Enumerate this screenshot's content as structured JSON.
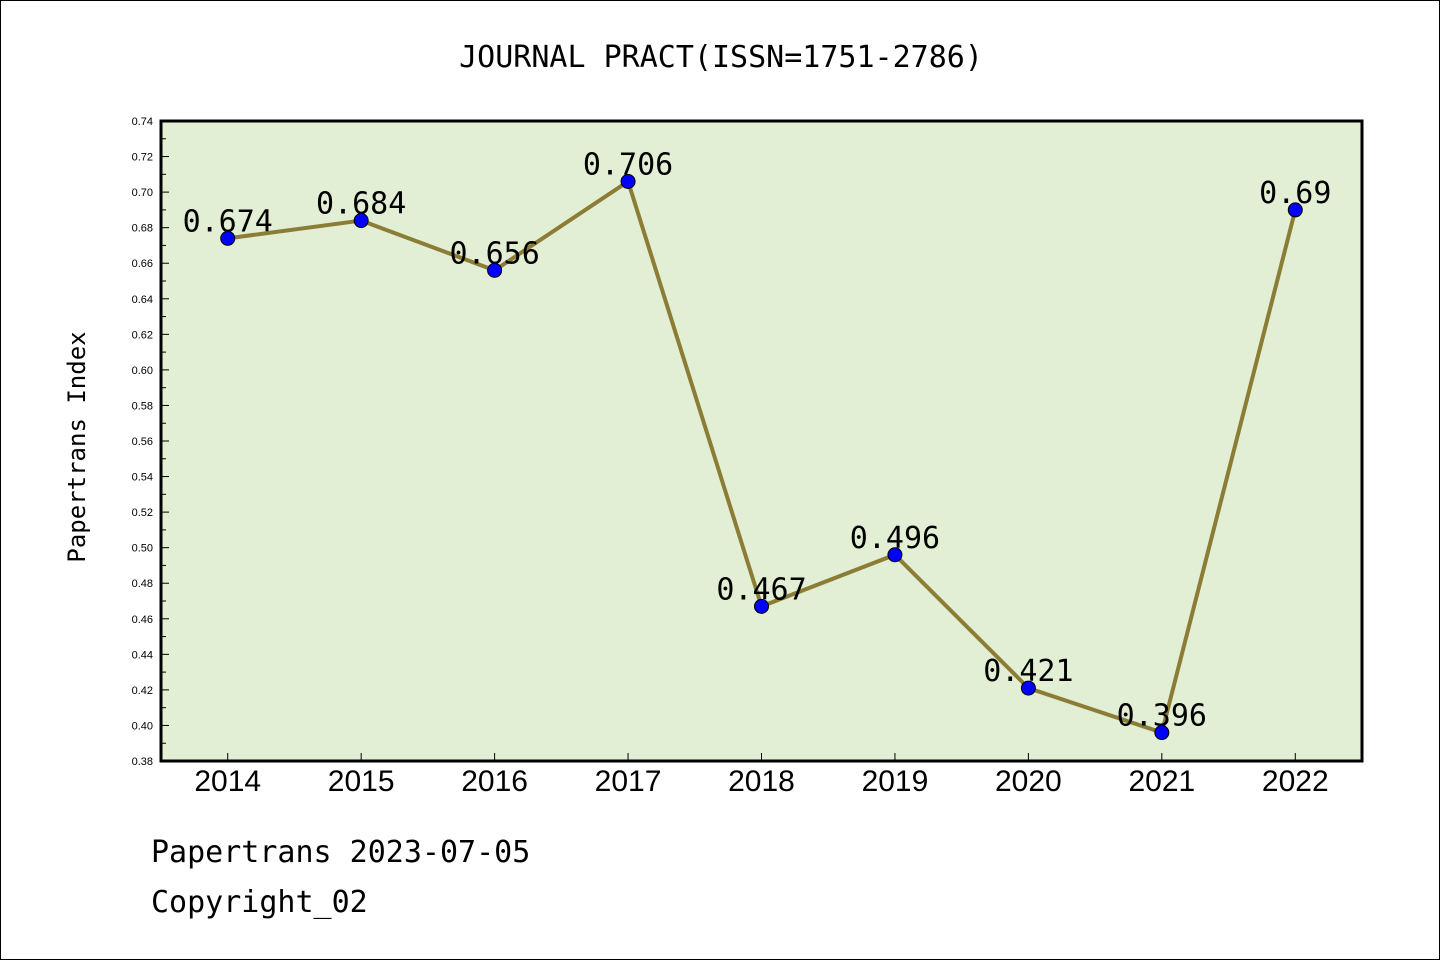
{
  "chart_data": {
    "type": "line",
    "title": "JOURNAL PRACT(ISSN=1751-2786)",
    "xlabel": "",
    "ylabel": "Papertrans Index",
    "categories": [
      "2014",
      "2015",
      "2016",
      "2017",
      "2018",
      "2019",
      "2020",
      "2021",
      "2022"
    ],
    "series": [
      {
        "values": [
          0.674,
          0.684,
          0.656,
          0.706,
          0.467,
          0.496,
          0.421,
          0.396,
          0.69
        ],
        "data_labels": [
          "0.674",
          "0.684",
          "0.656",
          "0.706",
          "0.467",
          "0.496",
          "0.421",
          "0.396",
          "0.69"
        ]
      }
    ],
    "ylim": [
      0.38,
      0.74
    ],
    "yticks": [
      "0.38",
      "0.40",
      "0.42",
      "0.44",
      "0.46",
      "0.48",
      "0.50",
      "0.52",
      "0.54",
      "0.56",
      "0.58",
      "0.60",
      "0.62",
      "0.64",
      "0.66",
      "0.68",
      "0.70",
      "0.72",
      "0.74"
    ],
    "grid": false,
    "legend": "none",
    "colors": {
      "plot_background": "#e2efd5",
      "line": "#8b7d35",
      "marker": "#0000ff"
    }
  },
  "footer": {
    "date_line": "Papertrans 2023-07-05",
    "copyright_line": "Copyright_02"
  }
}
